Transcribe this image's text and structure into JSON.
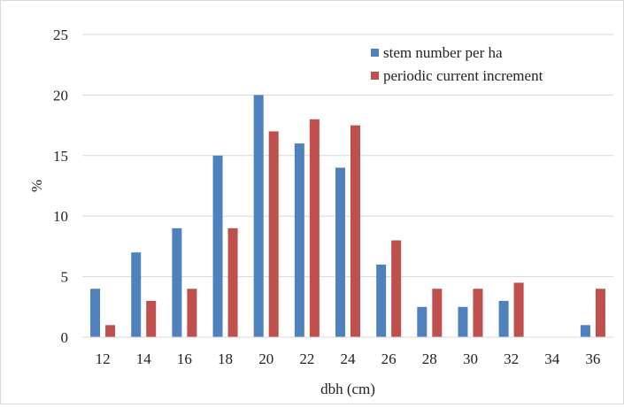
{
  "chart_data": {
    "type": "bar",
    "title": "",
    "xlabel": "dbh (cm)",
    "ylabel": "%",
    "categories": [
      "12",
      "14",
      "16",
      "18",
      "20",
      "22",
      "24",
      "26",
      "28",
      "30",
      "32",
      "34",
      "36"
    ],
    "series": [
      {
        "name": "stem number per ha",
        "color": "#4f81bd",
        "values": [
          4,
          7,
          9,
          15,
          20,
          16,
          14,
          6,
          2.5,
          2.5,
          3,
          0,
          1
        ]
      },
      {
        "name": "periodic current increment",
        "color": "#c0504d",
        "values": [
          1,
          3,
          4,
          9,
          17,
          18,
          17.5,
          8,
          4,
          4,
          4.5,
          0,
          4
        ]
      }
    ],
    "ylim": [
      0,
      25
    ],
    "yticks": [
      0,
      5,
      10,
      15,
      20,
      25
    ],
    "grid": true,
    "legend_position": "top-right"
  }
}
